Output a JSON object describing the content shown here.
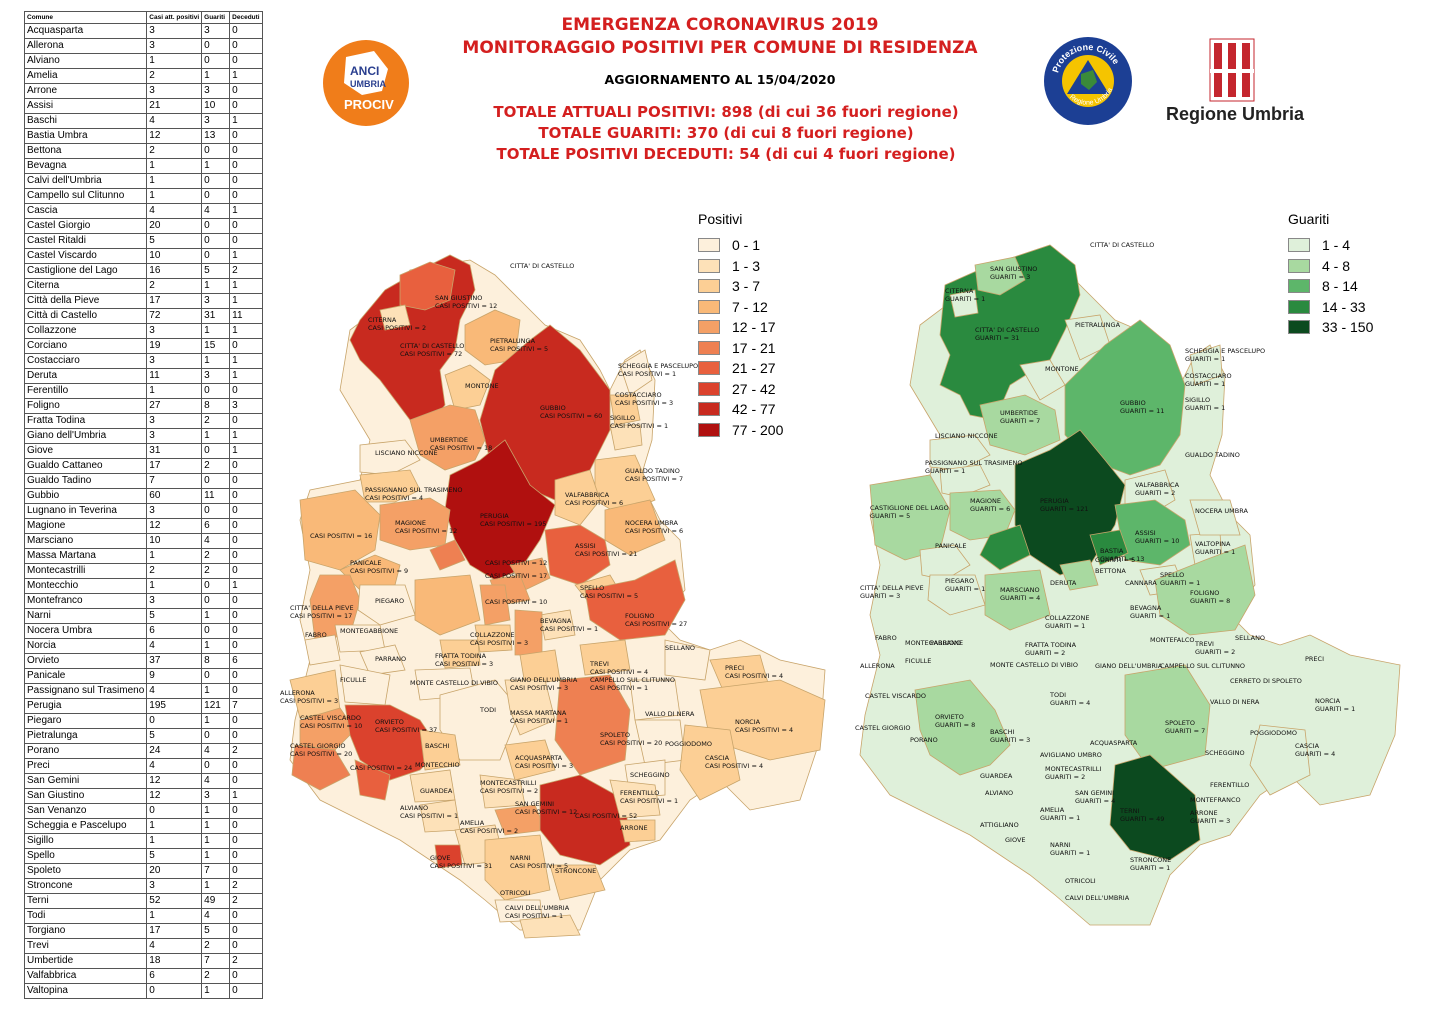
{
  "header": {
    "title_line1": "EMERGENZA CORONAVIRUS 2019",
    "title_line2": "MONITORAGGIO POSITIVI PER COMUNE DI RESIDENZA",
    "update": "AGGIORNAMENTO AL 15/04/2020",
    "total_positive": "TOTALE ATTUALI POSITIVI: 898 (di cui 36 fuori regione)",
    "total_recovered": "TOTALE GUARITI: 370 (di cui 8 fuori regione)",
    "total_deceased": "TOTALE POSITIVI DECEDUTI: 54 (di cui 4 fuori regione)"
  },
  "logos": {
    "anci_line1": "ANCI",
    "anci_line2": "UMBRIA",
    "anci_line3": "PROCIV",
    "protezione_civile_top": "Protezione Civile",
    "protezione_civile_bottom": "Regione Umbria",
    "regione_umbria": "Regione Umbria"
  },
  "colors": {
    "title_red": "#d41f1f",
    "anci_orange": "#f07d1a",
    "anci_blue": "#2a3f8f",
    "pc_blue": "#1c3f94",
    "pc_yellow": "#f5c400",
    "umbria_red": "#c4262e"
  },
  "table": {
    "headers": [
      "Comune",
      "Casi att. positivi",
      "Guariti",
      "Deceduti"
    ],
    "rows": [
      [
        "Acquasparta",
        "3",
        "3",
        "0"
      ],
      [
        "Allerona",
        "3",
        "0",
        "0"
      ],
      [
        "Alviano",
        "1",
        "0",
        "0"
      ],
      [
        "Amelia",
        "2",
        "1",
        "1"
      ],
      [
        "Arrone",
        "3",
        "3",
        "0"
      ],
      [
        "Assisi",
        "21",
        "10",
        "0"
      ],
      [
        "Baschi",
        "4",
        "3",
        "1"
      ],
      [
        "Bastia Umbra",
        "12",
        "13",
        "0"
      ],
      [
        "Bettona",
        "2",
        "0",
        "0"
      ],
      [
        "Bevagna",
        "1",
        "1",
        "0"
      ],
      [
        "Calvi dell'Umbria",
        "1",
        "0",
        "0"
      ],
      [
        "Campello sul Clitunno",
        "1",
        "0",
        "0"
      ],
      [
        "Cascia",
        "4",
        "4",
        "1"
      ],
      [
        "Castel Giorgio",
        "20",
        "0",
        "0"
      ],
      [
        "Castel Ritaldi",
        "5",
        "0",
        "0"
      ],
      [
        "Castel Viscardo",
        "10",
        "0",
        "1"
      ],
      [
        "Castiglione del Lago",
        "16",
        "5",
        "2"
      ],
      [
        "Citerna",
        "2",
        "1",
        "1"
      ],
      [
        "Città  della Pieve",
        "17",
        "3",
        "1"
      ],
      [
        "Città  di Castello",
        "72",
        "31",
        "11"
      ],
      [
        "Collazzone",
        "3",
        "1",
        "1"
      ],
      [
        "Corciano",
        "19",
        "15",
        "0"
      ],
      [
        "Costacciaro",
        "3",
        "1",
        "1"
      ],
      [
        "Deruta",
        "11",
        "3",
        "1"
      ],
      [
        "Ferentillo",
        "1",
        "0",
        "0"
      ],
      [
        "Foligno",
        "27",
        "8",
        "3"
      ],
      [
        "Fratta Todina",
        "3",
        "2",
        "0"
      ],
      [
        "Giano dell'Umbria",
        "3",
        "1",
        "1"
      ],
      [
        "Giove",
        "31",
        "0",
        "1"
      ],
      [
        "Gualdo Cattaneo",
        "17",
        "2",
        "0"
      ],
      [
        "Gualdo Tadino",
        "7",
        "0",
        "0"
      ],
      [
        "Gubbio",
        "60",
        "11",
        "0"
      ],
      [
        "Lugnano in Teverina",
        "3",
        "0",
        "0"
      ],
      [
        "Magione",
        "12",
        "6",
        "0"
      ],
      [
        "Marsciano",
        "10",
        "4",
        "0"
      ],
      [
        "Massa Martana",
        "1",
        "2",
        "0"
      ],
      [
        "Montecastrilli",
        "2",
        "2",
        "0"
      ],
      [
        "Montecchio",
        "1",
        "0",
        "1"
      ],
      [
        "Montefranco",
        "3",
        "0",
        "0"
      ],
      [
        "Narni",
        "5",
        "1",
        "0"
      ],
      [
        "Nocera Umbra",
        "6",
        "0",
        "0"
      ],
      [
        "Norcia",
        "4",
        "1",
        "0"
      ],
      [
        "Orvieto",
        "37",
        "8",
        "6"
      ],
      [
        "Panicale",
        "9",
        "0",
        "0"
      ],
      [
        "Passignano sul Trasimeno",
        "4",
        "1",
        "0"
      ],
      [
        "Perugia",
        "195",
        "121",
        "7"
      ],
      [
        "Piegaro",
        "0",
        "1",
        "0"
      ],
      [
        "Pietralunga",
        "5",
        "0",
        "0"
      ],
      [
        "Porano",
        "24",
        "4",
        "2"
      ],
      [
        "Preci",
        "4",
        "0",
        "0"
      ],
      [
        "San Gemini",
        "12",
        "4",
        "0"
      ],
      [
        "San Giustino",
        "12",
        "3",
        "1"
      ],
      [
        "San Venanzo",
        "0",
        "1",
        "0"
      ],
      [
        "Scheggia e Pascelupo",
        "1",
        "1",
        "0"
      ],
      [
        "Sigillo",
        "1",
        "1",
        "0"
      ],
      [
        "Spello",
        "5",
        "1",
        "0"
      ],
      [
        "Spoleto",
        "20",
        "7",
        "0"
      ],
      [
        "Stroncone",
        "3",
        "1",
        "2"
      ],
      [
        "Terni",
        "52",
        "49",
        "2"
      ],
      [
        "Todi",
        "1",
        "4",
        "0"
      ],
      [
        "Torgiano",
        "17",
        "5",
        "0"
      ],
      [
        "Trevi",
        "4",
        "2",
        "0"
      ],
      [
        "Umbertide",
        "18",
        "7",
        "2"
      ],
      [
        "Valfabbrica",
        "6",
        "2",
        "0"
      ],
      [
        "Valtopina",
        "0",
        "1",
        "0"
      ]
    ]
  },
  "legend_positivi": {
    "title": "Positivi",
    "items": [
      {
        "label": "0 - 1",
        "color": "#fdf0dc"
      },
      {
        "label": "1 - 3",
        "color": "#fde1b8"
      },
      {
        "label": "3 - 7",
        "color": "#fccf95"
      },
      {
        "label": "7 - 12",
        "color": "#f9b978"
      },
      {
        "label": "12 - 17",
        "color": "#f4a066"
      },
      {
        "label": "17 - 21",
        "color": "#ee8052"
      },
      {
        "label": "21 - 27",
        "color": "#e8603e"
      },
      {
        "label": "27 - 42",
        "color": "#db422d"
      },
      {
        "label": "42 - 77",
        "color": "#c82a1f"
      },
      {
        "label": "77 - 200",
        "color": "#b0100f"
      }
    ]
  },
  "legend_guariti": {
    "title": "Guariti",
    "items": [
      {
        "label": "1 - 4",
        "color": "#dff0da"
      },
      {
        "label": "4 - 8",
        "color": "#a8d9a0"
      },
      {
        "label": "8 - 14",
        "color": "#5db66a"
      },
      {
        "label": "14 - 33",
        "color": "#2a8a3f"
      },
      {
        "label": "33 - 150",
        "color": "#0c4a1f"
      }
    ]
  },
  "map_positivi_labels": [
    [
      "CITTA' DI CASTELLO",
      ""
    ],
    [
      "SAN GIUSTINO",
      "CASI POSITIVI = 12"
    ],
    [
      "CITERNA",
      "CASI POSITIVI = 2"
    ],
    [
      "CITTA' DI CASTELLO",
      "CASI POSITIVI = 72"
    ],
    [
      "PIETRALUNGA",
      "CASI POSITIVI = 5"
    ],
    [
      "MONTONE",
      ""
    ],
    [
      "SCHEGGIA E PASCELUPO",
      "CASI POSITIVI = 1"
    ],
    [
      "COSTACCIARO",
      "CASI POSITIVI = 3"
    ],
    [
      "SIGILLO",
      "CASI POSITIVI = 1"
    ],
    [
      "GUBBIO",
      "CASI POSITIVI = 60"
    ],
    [
      "UMBERTIDE",
      "CASI POSITIVI = 18"
    ],
    [
      "LISCIANO NICCONE",
      ""
    ],
    [
      "PASSIGNANO SUL TRASIMENO",
      "CASI POSITIVI = 4"
    ],
    [
      "GUALDO TADINO",
      "CASI POSITIVI = 7"
    ],
    [
      "MAGIONE",
      "CASI POSITIVI = 12"
    ],
    [
      "PERUGIA",
      "CASI POSITIVI = 195"
    ],
    [
      "VALFABBRICA",
      "CASI POSITIVI = 6"
    ],
    [
      "NOCERA UMBRA",
      "CASI POSITIVI = 6"
    ],
    [
      "CASI POSITIVI = 16",
      ""
    ],
    [
      "ASSISI",
      "CASI POSITIVI = 21"
    ],
    [
      "PANICALE",
      "CASI POSITIVI = 9"
    ],
    [
      "CASI POSITIVI = 12",
      ""
    ],
    [
      "CASI POSITIVI = 17",
      ""
    ],
    [
      "SPELLO",
      "CASI POSITIVI = 5"
    ],
    [
      "FOLIGNO",
      "CASI POSITIVI = 27"
    ],
    [
      "CITTA' DELLA PIEVE",
      "CASI POSITIVI = 17"
    ],
    [
      "PIEGARO",
      ""
    ],
    [
      "CASI POSITIVI = 10",
      ""
    ],
    [
      "BEVAGNA",
      "CASI POSITIVI = 1"
    ],
    [
      "MONTEGABBIONE",
      ""
    ],
    [
      "COLLAZZONE",
      "CASI POSITIVI = 3"
    ],
    [
      "FRATTA TODINA",
      "CASI POSITIVI = 3"
    ],
    [
      "PARRANO",
      ""
    ],
    [
      "FABRO",
      ""
    ],
    [
      "SELLANO",
      ""
    ],
    [
      "TREVI",
      "CASI POSITIVI = 4"
    ],
    [
      "CAMPELLO SUL CLITUNNO",
      "CASI POSITIVI = 1"
    ],
    [
      "MONTE CASTELLO DI VIBIO",
      ""
    ],
    [
      "GIANO DELL'UMBRIA",
      "CASI POSITIVI = 3"
    ],
    [
      "PRECI",
      "CASI POSITIVI = 4"
    ],
    [
      "FICULLE",
      ""
    ],
    [
      "ALLERONA",
      "CASI POSITIVI = 3"
    ],
    [
      "TODI",
      ""
    ],
    [
      "MASSA MARTANA",
      "CASI POSITIVI = 1"
    ],
    [
      "CASTEL VISCARDO",
      "CASI POSITIVI = 10"
    ],
    [
      "ORVIETO",
      "CASI POSITIVI = 37"
    ],
    [
      "SPOLETO",
      "CASI POSITIVI = 20"
    ],
    [
      "VALLO DI NERA",
      ""
    ],
    [
      "NORCIA",
      "CASI POSITIVI = 4"
    ],
    [
      "CASTEL GIORGIO",
      "CASI POSITIVI = 20"
    ],
    [
      "CASI POSITIVI = 24",
      ""
    ],
    [
      "BASCHI",
      ""
    ],
    [
      "POGGIODOMO",
      ""
    ],
    [
      "CASCIA",
      "CASI POSITIVI = 4"
    ],
    [
      "ACQUASPARTA",
      "CASI POSITIVI = 3"
    ],
    [
      "MONTECCHIO",
      ""
    ],
    [
      "GUARDEA",
      ""
    ],
    [
      "MONTECASTRILLI",
      "CASI POSITIVI = 2"
    ],
    [
      "SCHEGGINO",
      ""
    ],
    [
      "ALVIANO",
      "CASI POSITIVI = 1"
    ],
    [
      "SAN GEMINI",
      "CASI POSITIVI = 12"
    ],
    [
      "FERENTILLO",
      "CASI POSITIVI = 1"
    ],
    [
      "AMELIA",
      "CASI POSITIVI = 2"
    ],
    [
      "CASI POSITIVI = 52",
      ""
    ],
    [
      "ARRONE",
      ""
    ],
    [
      "GIOVE",
      "CASI POSITIVI = 31"
    ],
    [
      "NARNI",
      "CASI POSITIVI = 5"
    ],
    [
      "STRONCONE",
      ""
    ],
    [
      "OTRICOLI",
      ""
    ],
    [
      "CALVI DELL'UMBRIA",
      "CASI POSITIVI = 1"
    ]
  ],
  "map_guariti_labels": [
    [
      "CITTA' DI CASTELLO",
      ""
    ],
    [
      "SAN GIUSTINO",
      "GUARITI = 3"
    ],
    [
      "CITERNA",
      "GUARITI = 1"
    ],
    [
      "CITTA' DI CASTELLO",
      "GUARITI = 31"
    ],
    [
      "PIETRALUNGA",
      ""
    ],
    [
      "MONTONE",
      ""
    ],
    [
      "SCHEGGIA E PASCELUPO",
      "GUARITI = 1"
    ],
    [
      "COSTACCIARO",
      "GUARITI = 1"
    ],
    [
      "SIGILLO",
      "GUARITI = 1"
    ],
    [
      "GUBBIO",
      "GUARITI = 11"
    ],
    [
      "UMBERTIDE",
      "GUARITI = 7"
    ],
    [
      "LISCIANO NICCONE",
      ""
    ],
    [
      "PASSIGNANO SUL TRASIMENO",
      "GUARITI = 1"
    ],
    [
      "GUALDO TADINO",
      ""
    ],
    [
      "MAGIONE",
      "GUARITI = 6"
    ],
    [
      "PERUGIA",
      "GUARITI = 121"
    ],
    [
      "VALFABBRICA",
      "GUARITI = 2"
    ],
    [
      "NOCERA UMBRA",
      ""
    ],
    [
      "CASTIGLIONE DEL LAGO",
      "GUARITI = 5"
    ],
    [
      "ASSISI",
      "GUARITI = 10"
    ],
    [
      "BASTIA",
      "GUARITI = 13"
    ],
    [
      "PANICALE",
      ""
    ],
    [
      "VALTOPINA",
      "GUARITI = 1"
    ],
    [
      "GUARITI = 5",
      ""
    ],
    [
      "BETTONA",
      ""
    ],
    [
      "SPELLO",
      "GUARITI = 1"
    ],
    [
      "CITTA' DELLA PIEVE",
      "GUARITI = 3"
    ],
    [
      "PIEGARO",
      "GUARITI = 1"
    ],
    [
      "DERUTA",
      ""
    ],
    [
      "CANNARA",
      ""
    ],
    [
      "FOLIGNO",
      "GUARITI = 8"
    ],
    [
      "MARSCIANO",
      "GUARITI = 4"
    ],
    [
      "BEVAGNA",
      "GUARITI = 1"
    ],
    [
      "FABRO",
      ""
    ],
    [
      "MONTEGABBIONE",
      ""
    ],
    [
      "COLLAZZONE",
      "GUARITI = 1"
    ],
    [
      "MONTEFALCO",
      ""
    ],
    [
      "SELLANO",
      ""
    ],
    [
      "PARRANO",
      ""
    ],
    [
      "FRATTA TODINA",
      "GUARITI = 2"
    ],
    [
      "TREVI",
      "GUARITI = 2"
    ],
    [
      "CAMPELLO SUL CLITUNNO",
      ""
    ],
    [
      "ALLERONA",
      ""
    ],
    [
      "FICULLE",
      ""
    ],
    [
      "MONTE CASTELLO DI VIBIO",
      ""
    ],
    [
      "GIANO DELL'UMBRIA",
      ""
    ],
    [
      "PRECI",
      ""
    ],
    [
      "CERRETO DI SPOLETO",
      ""
    ],
    [
      "CASTEL VISCARDO",
      ""
    ],
    [
      "TODI",
      "GUARITI = 4"
    ],
    [
      "VALLO DI NERA",
      ""
    ],
    [
      "NORCIA",
      "GUARITI = 1"
    ],
    [
      "CASTEL GIORGIO",
      ""
    ],
    [
      "ORVIETO",
      "GUARITI = 8"
    ],
    [
      "SPOLETO",
      "GUARITI = 7"
    ],
    [
      "POGGIODOMO",
      ""
    ],
    [
      "PORANO",
      ""
    ],
    [
      "BASCHI",
      "GUARITI = 3"
    ],
    [
      "ACQUASPARTA",
      ""
    ],
    [
      "AVIGLIANO UMBRO",
      ""
    ],
    [
      "SCHEGGINO",
      ""
    ],
    [
      "CASCIA",
      "GUARITI = 4"
    ],
    [
      "GUARDEA",
      ""
    ],
    [
      "MONTECASTRILLI",
      "GUARITI = 2"
    ],
    [
      "FERENTILLO",
      ""
    ],
    [
      "ALVIANO",
      ""
    ],
    [
      "SAN GEMINI",
      "GUARITI = 4"
    ],
    [
      "MONTEFRANCO",
      ""
    ],
    [
      "AMELIA",
      "GUARITI = 1"
    ],
    [
      "TERNI",
      "GUARITI = 49"
    ],
    [
      "ARRONE",
      "GUARITI = 3"
    ],
    [
      "ATTIGLIANO",
      ""
    ],
    [
      "GIOVE",
      ""
    ],
    [
      "NARNI",
      "GUARITI = 1"
    ],
    [
      "STRONCONE",
      "GUARITI = 1"
    ],
    [
      "OTRICOLI",
      ""
    ],
    [
      "CALVI DELL'UMBRIA",
      ""
    ]
  ]
}
